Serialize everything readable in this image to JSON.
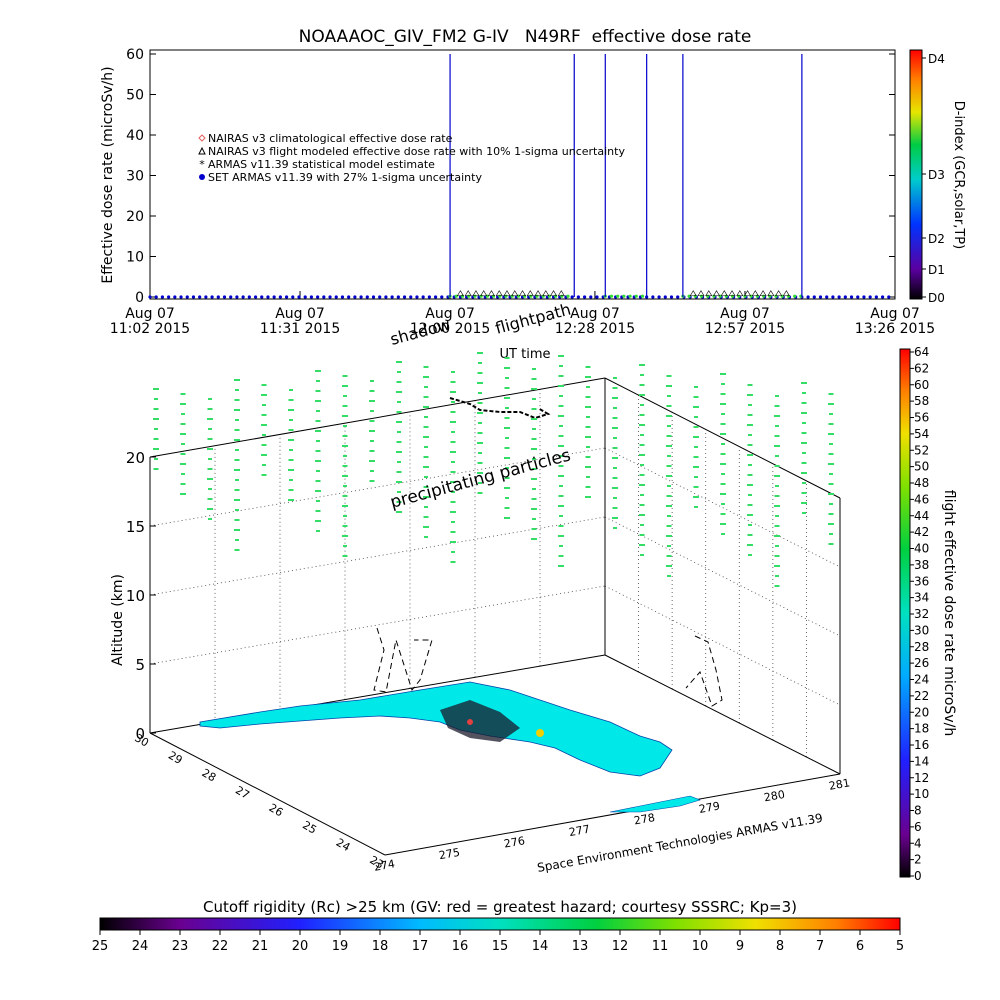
{
  "chart_data": [
    {
      "type": "line",
      "title": "NOAAAOC_GIV_FM2 G-IV   N49RF  effective dose rate",
      "ylabel": "Effective dose rate (microSv/h)",
      "xlabel": "UT time",
      "ylim": [
        0,
        60
      ],
      "yticks": [
        0,
        10,
        20,
        30,
        40,
        50,
        60
      ],
      "x_range": [
        "2015-08-07 11:02",
        "2015-08-07 13:26"
      ],
      "x_ticks": [
        {
          "line1": "Aug 07",
          "line2": "11:02 2015",
          "t": 0
        },
        {
          "line1": "Aug 07",
          "line2": "11:31 2015",
          "t": 29
        },
        {
          "line1": "Aug 07",
          "line2": "12:00 2015",
          "t": 58
        },
        {
          "line1": "Aug 07",
          "line2": "12:28 2015",
          "t": 86
        },
        {
          "line1": "Aug 07",
          "line2": "12:57 2015",
          "t": 115
        },
        {
          "line1": "Aug 07",
          "line2": "13:26 2015",
          "t": 144
        }
      ],
      "legend": [
        {
          "label": "NAIRAS v3 climatological effective dose rate",
          "color": "#e06060",
          "marker": "diamond"
        },
        {
          "label": "NAIRAS v3 flight modeled effective dose rate with 10% 1-sigma uncertainty",
          "color": "#000000",
          "marker": "triangle"
        },
        {
          "label": "ARMAS v11.39 statistical model estimate",
          "color": "#33dd33",
          "marker": "star"
        },
        {
          "label": "SET ARMAS v11.39 with 27% 1-sigma uncertainty",
          "color": "#0000cc",
          "marker": "dot"
        }
      ],
      "legend_placement": "upper-left",
      "series": [
        {
          "name": "SET ARMAS v11.39 with 27% 1-sigma uncertainty",
          "color": "#0000cc",
          "baseline": 0,
          "spikes_minutes": [
            58,
            82,
            88,
            96,
            103,
            126
          ],
          "spike_value": 60
        },
        {
          "name": "ARMAS v11.39 statistical model estimate",
          "color": "#33dd33",
          "segments_minutes": [
            [
              58,
              82
            ],
            [
              88,
              96
            ],
            [
              103,
              126
            ]
          ],
          "value": 0.2
        },
        {
          "name": "NAIRAS v3 flight modeled effective dose rate with 10% 1-sigma uncertainty",
          "color": "#000000",
          "segments_minutes": [
            [
              60,
              80
            ],
            [
              105,
              123
            ]
          ],
          "value": 0.8
        }
      ],
      "right_axis": {
        "label": "D-index (GCR,solar,TP)",
        "ticks": [
          "D0",
          "D1",
          "D2",
          "D3",
          "D4"
        ]
      }
    },
    {
      "type": "scatter",
      "zlabel": "Altitude (km)",
      "zticks": [
        0,
        5,
        10,
        15,
        20
      ],
      "lat_ticks": [
        "23",
        "24",
        "25",
        "26",
        "27",
        "28",
        "29",
        "30"
      ],
      "lon_ticks": [
        "274",
        "275",
        "276",
        "277",
        "278",
        "279",
        "280",
        "281"
      ],
      "annotations": [
        "flightpath",
        "shadow",
        "precipitating particles"
      ],
      "colorbar": {
        "label": "flight effective dose rate microSv/h",
        "ticks": [
          0,
          2,
          4,
          6,
          8,
          10,
          12,
          14,
          16,
          18,
          20,
          22,
          24,
          26,
          28,
          30,
          32,
          34,
          36,
          38,
          40,
          42,
          44,
          46,
          48,
          50,
          52,
          54,
          56,
          58,
          60,
          62,
          64
        ]
      },
      "credit": "Space Environment Technologies ARMAS v11.39"
    }
  ],
  "cutoff_colorbar": {
    "title": "Cutoff rigidity (Rc) >25 km (GV: red = greatest hazard; courtesy SSSRC; Kp=3)",
    "ticks": [
      "25",
      "24",
      "23",
      "22",
      "21",
      "20",
      "19",
      "18",
      "17",
      "16",
      "15",
      "14",
      "13",
      "12",
      "11",
      "10",
      "9",
      "8",
      "7",
      "6",
      "5"
    ]
  }
}
